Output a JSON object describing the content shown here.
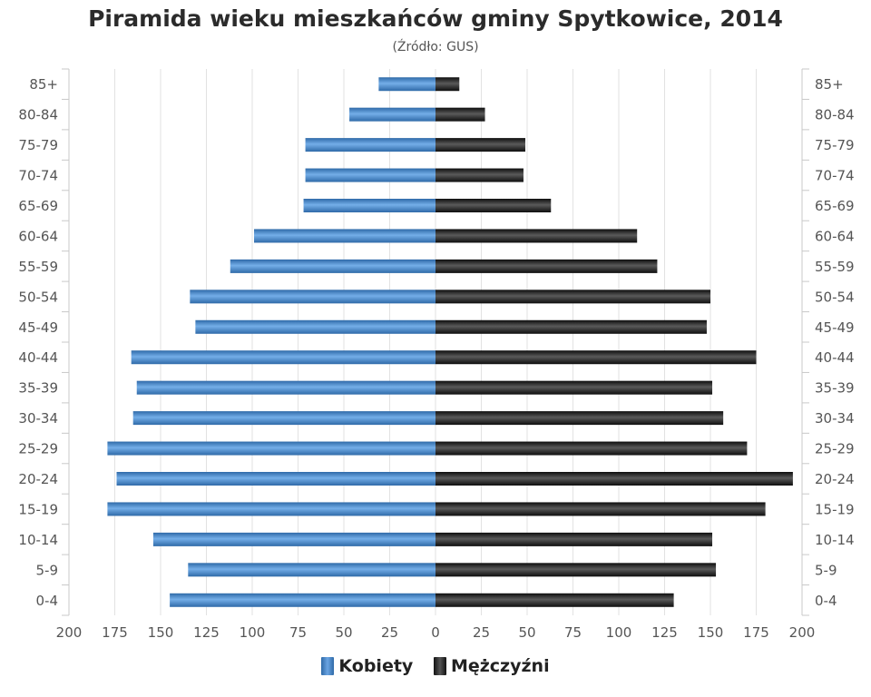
{
  "title": "Piramida wieku mieszkańców gminy Spytkowice, 2014",
  "subtitle": "(Źródło: GUS)",
  "chart_data": {
    "type": "bar",
    "orientation": "horizontal-pyramid",
    "title": "Piramida wieku mieszkańców gminy Spytkowice, 2014",
    "subtitle": "(Źródło: GUS)",
    "categories": [
      "85+",
      "80-84",
      "75-79",
      "70-74",
      "65-69",
      "60-64",
      "55-59",
      "50-54",
      "45-49",
      "40-44",
      "35-39",
      "30-34",
      "25-29",
      "20-24",
      "15-19",
      "10-14",
      "5-9",
      "0-4"
    ],
    "series": [
      {
        "name": "Kobiety",
        "color": "#4a86c8",
        "values": [
          31,
          47,
          71,
          71,
          72,
          99,
          112,
          134,
          131,
          166,
          163,
          165,
          179,
          174,
          179,
          154,
          135,
          145
        ]
      },
      {
        "name": "Mężczyźni",
        "color": "#1c1c1c",
        "values": [
          13,
          27,
          49,
          48,
          63,
          110,
          121,
          150,
          148,
          175,
          151,
          157,
          170,
          195,
          180,
          151,
          153,
          130
        ]
      }
    ],
    "xlim": [
      -200,
      200
    ],
    "xticks": [
      200,
      175,
      150,
      125,
      100,
      75,
      50,
      25,
      0,
      25,
      50,
      75,
      100,
      125,
      150,
      175,
      200
    ],
    "grid": true,
    "legend": "bottom"
  }
}
